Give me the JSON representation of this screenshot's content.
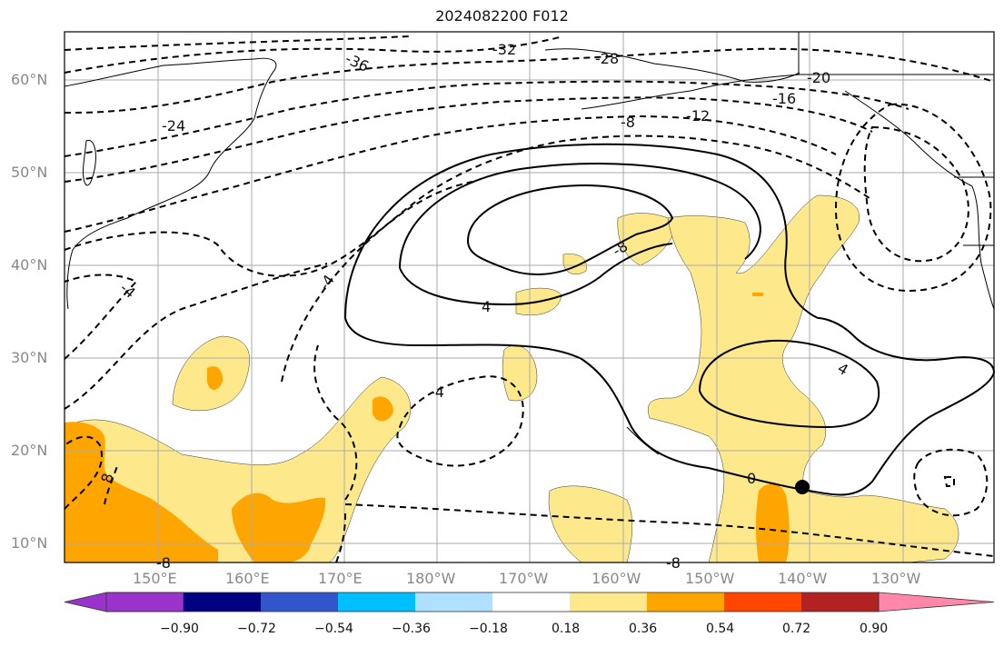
{
  "title": "2024082200 F012",
  "lat_labels": [
    "60°N",
    "50°N",
    "40°N",
    "30°N",
    "20°N",
    "10°N"
  ],
  "lon_labels": [
    "150°E",
    "160°E",
    "170°E",
    "180°W",
    "170°W",
    "160°W",
    "150°W",
    "140°W",
    "130°W"
  ],
  "contour_labels": [
    "-36",
    "-32",
    "-28",
    "-24",
    "-20",
    "-16",
    "-12",
    "-8",
    "-8",
    "-4",
    "-4",
    "-4",
    "0",
    "4",
    "4",
    "8",
    "-8",
    "-8"
  ],
  "colorbar": {
    "ticks": [
      "−0.90",
      "−0.72",
      "−0.54",
      "−0.36",
      "−0.18",
      "0.18",
      "0.36",
      "0.54",
      "0.72",
      "0.90"
    ],
    "colors": [
      "#9933cc",
      "#000080",
      "#3355cc",
      "#00bfff",
      "#b0e0ff",
      "#ffffff",
      "#fde98c",
      "#ffa500",
      "#ff4500",
      "#b22222",
      "#ff88aa"
    ]
  },
  "colors": {
    "shade_low": "#fde98c",
    "shade_mid": "#ffa500",
    "contour": "#000000",
    "grid": "#aaaaaa",
    "coast": "#000000"
  }
}
